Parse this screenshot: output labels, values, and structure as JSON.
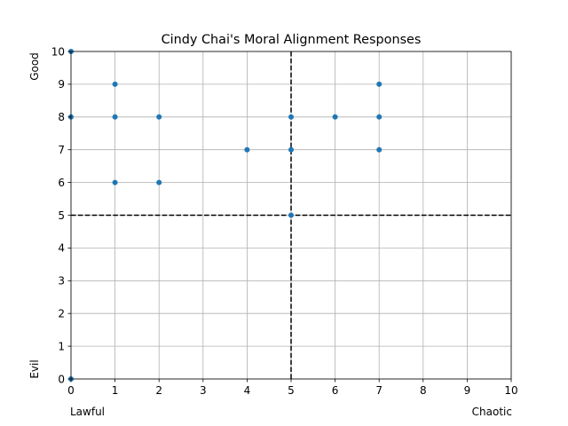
{
  "chart_data": {
    "type": "scatter",
    "title": "Cindy Chai's Moral Alignment Responses",
    "x_ticks": [
      "0",
      "1",
      "2",
      "3",
      "4",
      "5",
      "6",
      "7",
      "8",
      "9",
      "10"
    ],
    "y_ticks": [
      "0",
      "1",
      "2",
      "3",
      "4",
      "5",
      "6",
      "7",
      "8",
      "9",
      "10"
    ],
    "xlim": [
      0,
      10
    ],
    "ylim": [
      0,
      10
    ],
    "x_left_label": "Lawful",
    "x_right_label": "Chaotic",
    "y_bottom_label": "Evil",
    "y_top_label": "Good",
    "grid": true,
    "reference_lines": {
      "x": 5,
      "y": 5,
      "style": "dashed",
      "color": "#000000"
    },
    "point_color": "#1f77b4",
    "points": [
      {
        "x": 0,
        "y": 10
      },
      {
        "x": 0,
        "y": 8
      },
      {
        "x": 0,
        "y": 0
      },
      {
        "x": 1,
        "y": 9
      },
      {
        "x": 1,
        "y": 8
      },
      {
        "x": 1,
        "y": 6
      },
      {
        "x": 2,
        "y": 8
      },
      {
        "x": 2,
        "y": 6
      },
      {
        "x": 4,
        "y": 7
      },
      {
        "x": 5,
        "y": 8
      },
      {
        "x": 5,
        "y": 7
      },
      {
        "x": 5,
        "y": 5
      },
      {
        "x": 6,
        "y": 8
      },
      {
        "x": 7,
        "y": 9
      },
      {
        "x": 7,
        "y": 8
      },
      {
        "x": 7,
        "y": 7
      }
    ]
  }
}
